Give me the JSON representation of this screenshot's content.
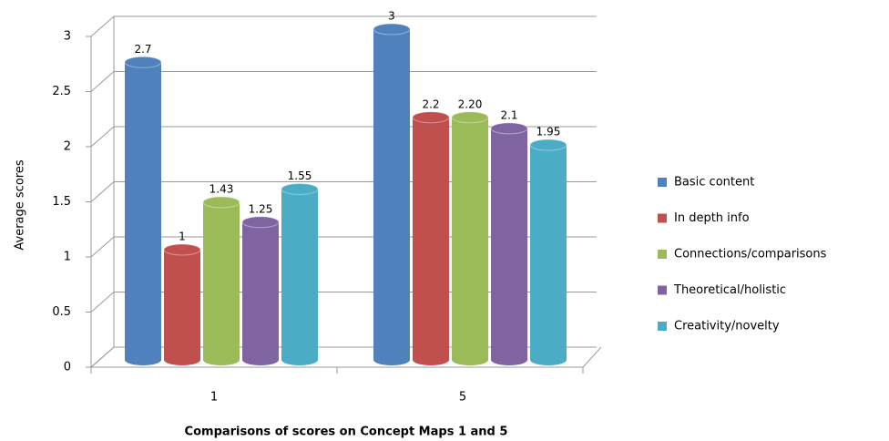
{
  "chart_data": {
    "type": "bar3d",
    "x_label": "Comparisons of scores on Concept Maps 1 and 5",
    "y_label": "Average scores",
    "categories": [
      "1",
      "5"
    ],
    "ylim": [
      0,
      3
    ],
    "yticks": [
      0,
      0.5,
      1,
      1.5,
      2,
      2.5,
      3
    ],
    "grid": true,
    "series": [
      {
        "name": "Basic content",
        "color": "#4f81bd",
        "values": [
          2.7,
          3
        ]
      },
      {
        "name": "In depth info",
        "color": "#c0504d",
        "values": [
          1,
          2.2
        ]
      },
      {
        "name": "Connections/comparisons",
        "color": "#9bbb59",
        "values": [
          1.43,
          2.2
        ],
        "value_labels": [
          "1.43",
          "2.20"
        ]
      },
      {
        "name": "Theoretical/holistic",
        "color": "#8064a2",
        "values": [
          1.25,
          2.1
        ]
      },
      {
        "name": "Creativity/novelty",
        "color": "#4bacc6",
        "values": [
          1.55,
          1.95
        ]
      }
    ]
  }
}
